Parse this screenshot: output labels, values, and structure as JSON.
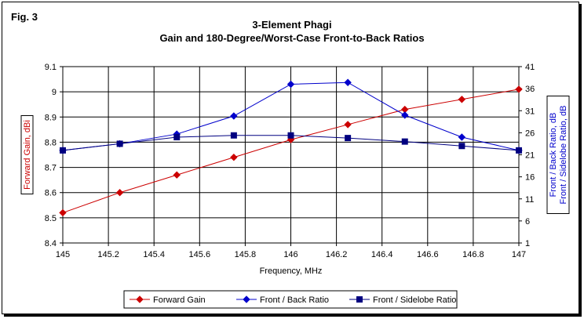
{
  "figure": {
    "fig_label": "Fig. 3",
    "title_line1": "3-Element Phagi",
    "title_line2": "Gain and 180-Degree/Worst-Case Front-to-Back Ratios"
  },
  "chart_data": {
    "type": "line",
    "title": "3-Element Phagi",
    "subtitle": "Gain and 180-Degree/Worst-Case Front-to-Back Ratios",
    "xlabel": "Frequency, MHz",
    "ylabel_left": "Forward Gain, dBi",
    "ylabel_right_1": "Front / Back Ratio,  dB",
    "ylabel_right_2": "Front / Sidelobe Ratio,  dB",
    "xlim": [
      145,
      147
    ],
    "ylim_left": [
      8.4,
      9.1
    ],
    "ylim_right": [
      1,
      41
    ],
    "x_ticks": [
      "145",
      "145.2",
      "145.4",
      "145.6",
      "145.8",
      "146",
      "146.2",
      "146.4",
      "146.6",
      "146.8",
      "147"
    ],
    "y_left_ticks": [
      "8.4",
      "8.5",
      "8.6",
      "8.7",
      "8.8",
      "8.9",
      "9",
      "9.1"
    ],
    "y_right_ticks": [
      "1",
      "6",
      "11",
      "16",
      "21",
      "26",
      "31",
      "36",
      "41"
    ],
    "grid": true,
    "legend_position": "bottom",
    "colors": {
      "gain": "#cc0000",
      "fb": "#0000cc",
      "fs": "#000080",
      "left_axis_label": "#cc0000",
      "right_axis_label": "#0000cc"
    },
    "series": [
      {
        "name": "Forward Gain",
        "axis": "left",
        "marker": "diamond",
        "color": "#cc0000",
        "x": [
          145,
          145.25,
          145.5,
          145.75,
          146,
          146.25,
          146.5,
          146.75,
          147
        ],
        "y": [
          8.52,
          8.6,
          8.67,
          8.74,
          8.81,
          8.87,
          8.93,
          8.97,
          9.01
        ]
      },
      {
        "name": "Front / Back Ratio",
        "axis": "right",
        "marker": "diamond",
        "color": "#0000cc",
        "x": [
          145,
          145.25,
          145.5,
          145.75,
          146,
          146.25,
          146.5,
          146.75,
          147
        ],
        "y": [
          22,
          23.5,
          25.7,
          29.8,
          37,
          37.4,
          30,
          25,
          22
        ]
      },
      {
        "name": "Front / Sidelobe Ratio",
        "axis": "right",
        "marker": "square",
        "color": "#000080",
        "x": [
          145,
          145.25,
          145.5,
          145.75,
          146,
          146.25,
          146.5,
          146.75,
          147
        ],
        "y": [
          22,
          23.5,
          25,
          25.4,
          25.4,
          24.8,
          24,
          23,
          22
        ]
      }
    ]
  }
}
